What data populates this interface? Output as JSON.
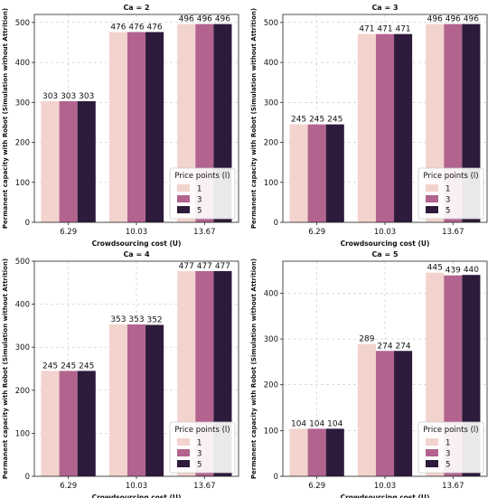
{
  "chart_data": [
    {
      "type": "bar",
      "title": "Ca = 2",
      "xlabel": "Crowdsourcing cost (U)",
      "ylabel": "Permanent capacity with Robot (Simulation without Attrition)",
      "categories": [
        "6.29",
        "10.03",
        "13.67"
      ],
      "ylim": [
        0,
        520
      ],
      "yticks": [
        0,
        100,
        200,
        300,
        400,
        500
      ],
      "grid": true,
      "legend": {
        "title": "Price points (l)",
        "placement": "lower-right"
      },
      "series": [
        {
          "name": "1",
          "color": "#f3d3cd",
          "values": [
            303,
            476,
            496
          ],
          "labels": [
            "303",
            "476",
            "496"
          ]
        },
        {
          "name": "3",
          "color": "#b2648f",
          "values": [
            303,
            476,
            496
          ],
          "labels": [
            "303",
            "476",
            "496"
          ]
        },
        {
          "name": "5",
          "color": "#2e1a3b",
          "values": [
            303,
            476,
            496
          ],
          "labels": [
            "303",
            "476",
            "496"
          ]
        }
      ]
    },
    {
      "type": "bar",
      "title": "Ca = 3",
      "xlabel": "Crowdsourcing cost (U)",
      "ylabel": "Permanent capacity with Robot (Simulation without Attrition)",
      "categories": [
        "6.29",
        "10.03",
        "13.67"
      ],
      "ylim": [
        0,
        520
      ],
      "yticks": [
        0,
        100,
        200,
        300,
        400,
        500
      ],
      "grid": true,
      "legend": {
        "title": "Price points (l)",
        "placement": "lower-right"
      },
      "series": [
        {
          "name": "1",
          "color": "#f3d3cd",
          "values": [
            245,
            471,
            496
          ],
          "labels": [
            "245",
            "471",
            "496"
          ]
        },
        {
          "name": "3",
          "color": "#b2648f",
          "values": [
            245,
            471,
            496
          ],
          "labels": [
            "245",
            "471",
            "496"
          ]
        },
        {
          "name": "5",
          "color": "#2e1a3b",
          "values": [
            245,
            471,
            496
          ],
          "labels": [
            "245",
            "471",
            "496"
          ]
        }
      ]
    },
    {
      "type": "bar",
      "title": "Ca = 4",
      "xlabel": "Crowdsourcing cost (U)",
      "ylabel": "Permanent capacity with Robot (Simulation without Attrition)",
      "categories": [
        "6.29",
        "10.03",
        "13.67"
      ],
      "ylim": [
        0,
        500
      ],
      "yticks": [
        0,
        100,
        200,
        300,
        400,
        500
      ],
      "grid": true,
      "legend": {
        "title": "Price points (l)",
        "placement": "lower-right"
      },
      "series": [
        {
          "name": "1",
          "color": "#f3d3cd",
          "values": [
            245,
            353,
            477
          ],
          "labels": [
            "245",
            "353",
            "477"
          ]
        },
        {
          "name": "3",
          "color": "#b2648f",
          "values": [
            245,
            353,
            477
          ],
          "labels": [
            "245",
            "353",
            "477"
          ]
        },
        {
          "name": "5",
          "color": "#2e1a3b",
          "values": [
            245,
            352,
            477
          ],
          "labels": [
            "245",
            "352",
            "477"
          ]
        }
      ]
    },
    {
      "type": "bar",
      "title": "Ca = 5",
      "xlabel": "Crowdsourcing cost (U)",
      "ylabel": "Permanent capacity with Robot (Simulation without Attrition)",
      "categories": [
        "6.29",
        "10.03",
        "13.67"
      ],
      "ylim": [
        0,
        470
      ],
      "yticks": [
        0,
        100,
        200,
        300,
        400
      ],
      "grid": true,
      "legend": {
        "title": "Price points (l)",
        "placement": "lower-right"
      },
      "series": [
        {
          "name": "1",
          "color": "#f3d3cd",
          "values": [
            104,
            289,
            445
          ],
          "labels": [
            "104",
            "289",
            "445"
          ]
        },
        {
          "name": "3",
          "color": "#b2648f",
          "values": [
            104,
            274,
            439
          ],
          "labels": [
            "104",
            "274",
            "439"
          ]
        },
        {
          "name": "5",
          "color": "#2e1a3b",
          "values": [
            104,
            274,
            440
          ],
          "labels": [
            "104",
            "274",
            "440"
          ]
        }
      ]
    }
  ]
}
